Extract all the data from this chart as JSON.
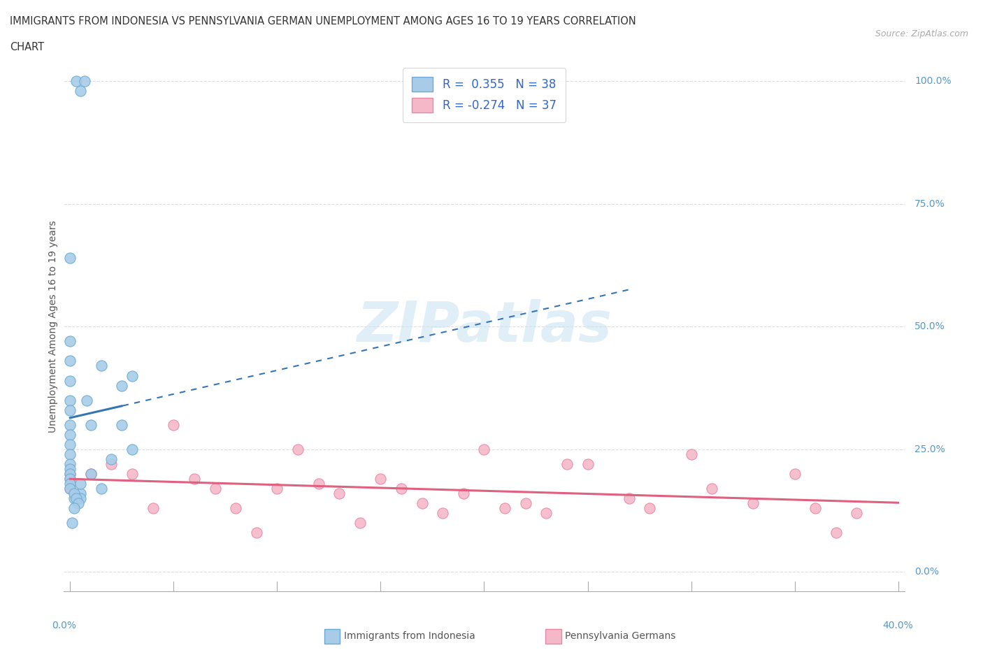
{
  "title_line1": "IMMIGRANTS FROM INDONESIA VS PENNSYLVANIA GERMAN UNEMPLOYMENT AMONG AGES 16 TO 19 YEARS CORRELATION",
  "title_line2": "CHART",
  "source": "Source: ZipAtlas.com",
  "ylabel": "Unemployment Among Ages 16 to 19 years",
  "legend_r1": "R =  0.355   N = 38",
  "legend_r2": "R = -0.274   N = 37",
  "watermark_top": "ZIP",
  "watermark_bot": "atlas",
  "blue_dot": "#a8cce8",
  "blue_dot_edge": "#6aaad4",
  "pink_dot": "#f5b8c8",
  "pink_dot_edge": "#e888a8",
  "blue_line": "#3575b5",
  "pink_line": "#e06080",
  "indonesia_x": [
    0.003,
    0.005,
    0.007,
    0.0,
    0.0,
    0.0,
    0.0,
    0.0,
    0.0,
    0.0,
    0.0,
    0.0,
    0.0,
    0.0,
    0.0,
    0.0,
    0.0,
    0.0,
    0.0,
    0.005,
    0.005,
    0.01,
    0.01,
    0.015,
    0.02,
    0.025,
    0.03,
    0.03,
    0.025,
    0.015,
    0.008,
    0.005,
    0.002,
    0.002,
    0.003,
    0.004,
    0.002,
    0.001
  ],
  "indonesia_y": [
    1.0,
    0.98,
    1.0,
    0.64,
    0.47,
    0.43,
    0.39,
    0.35,
    0.33,
    0.3,
    0.28,
    0.26,
    0.24,
    0.22,
    0.21,
    0.2,
    0.19,
    0.18,
    0.17,
    0.16,
    0.15,
    0.2,
    0.3,
    0.17,
    0.23,
    0.3,
    0.25,
    0.4,
    0.38,
    0.42,
    0.35,
    0.18,
    0.15,
    0.16,
    0.15,
    0.14,
    0.13,
    0.1
  ],
  "penn_x": [
    0.0,
    0.0,
    0.0,
    0.01,
    0.02,
    0.03,
    0.04,
    0.05,
    0.06,
    0.07,
    0.08,
    0.09,
    0.1,
    0.11,
    0.12,
    0.13,
    0.14,
    0.15,
    0.16,
    0.17,
    0.18,
    0.19,
    0.2,
    0.21,
    0.22,
    0.23,
    0.24,
    0.25,
    0.27,
    0.28,
    0.3,
    0.31,
    0.33,
    0.35,
    0.36,
    0.37,
    0.38
  ],
  "penn_y": [
    0.17,
    0.19,
    0.2,
    0.2,
    0.22,
    0.2,
    0.13,
    0.3,
    0.19,
    0.17,
    0.13,
    0.08,
    0.17,
    0.25,
    0.18,
    0.16,
    0.1,
    0.19,
    0.17,
    0.14,
    0.12,
    0.16,
    0.25,
    0.13,
    0.14,
    0.12,
    0.22,
    0.22,
    0.15,
    0.13,
    0.24,
    0.17,
    0.14,
    0.2,
    0.13,
    0.08,
    0.12
  ],
  "xmax": 0.4,
  "ymax": 1.0,
  "ytick_vals": [
    0.0,
    0.25,
    0.5,
    0.75,
    1.0
  ],
  "ytick_labels": [
    "0.0%",
    "25.0%",
    "50.0%",
    "75.0%",
    "100.0%"
  ],
  "axis_label_color": "#5599cc",
  "grid_color": "#dddddd",
  "title_color": "#333333",
  "source_color": "#aaaaaa"
}
